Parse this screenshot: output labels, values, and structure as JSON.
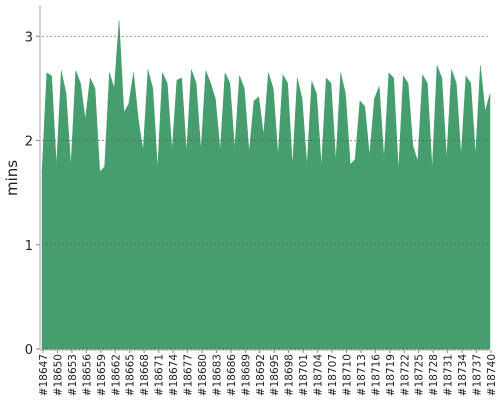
{
  "chart_data": {
    "type": "area",
    "y_label": "mins",
    "color": "#469e6e",
    "grid": true,
    "ylim": [
      0,
      3.3
    ],
    "yticks": [
      0,
      1,
      2,
      3
    ],
    "categories": [
      "#18647",
      null,
      null,
      "#18650",
      null,
      null,
      "#18653",
      null,
      null,
      "#18656",
      null,
      null,
      "#18659",
      null,
      null,
      "#18662",
      null,
      null,
      "#18665",
      null,
      null,
      "#18668",
      null,
      null,
      "#18671",
      null,
      null,
      "#18674",
      null,
      null,
      "#18677",
      null,
      null,
      "#18680",
      null,
      null,
      "#18683",
      null,
      null,
      "#18686",
      null,
      null,
      "#18689",
      null,
      null,
      "#18692",
      null,
      null,
      "#18695",
      null,
      null,
      "#18698",
      null,
      null,
      "#18701",
      null,
      null,
      "#18704",
      null,
      null,
      "#18707",
      null,
      null,
      "#18710",
      null,
      null,
      "#18713",
      null,
      null,
      "#18716",
      null,
      null,
      "#18719",
      null,
      null,
      "#18722",
      null,
      null,
      "#18725",
      null,
      null,
      "#18728",
      null,
      null,
      "#18731",
      null,
      null,
      "#18734",
      null,
      null,
      "#18737",
      null,
      null,
      "#18740"
    ],
    "values": [
      1.7,
      2.65,
      2.62,
      1.75,
      2.67,
      2.45,
      1.75,
      2.67,
      2.55,
      2.2,
      2.6,
      2.5,
      1.7,
      1.75,
      2.65,
      2.5,
      3.15,
      2.27,
      2.35,
      2.65,
      2.2,
      1.9,
      2.68,
      2.5,
      1.72,
      2.65,
      2.55,
      1.9,
      2.58,
      2.6,
      1.88,
      2.68,
      2.55,
      1.9,
      2.67,
      2.55,
      2.4,
      1.9,
      2.65,
      2.55,
      1.92,
      2.62,
      2.5,
      1.88,
      2.38,
      2.42,
      2.05,
      2.65,
      2.5,
      1.85,
      2.63,
      2.55,
      1.75,
      2.6,
      2.4,
      1.75,
      2.57,
      2.45,
      1.75,
      2.6,
      2.55,
      1.8,
      2.65,
      2.45,
      1.77,
      1.82,
      2.38,
      2.33,
      1.85,
      2.4,
      2.52,
      1.82,
      2.65,
      2.6,
      1.7,
      2.62,
      2.55,
      1.95,
      1.8,
      2.63,
      2.55,
      1.72,
      2.72,
      2.6,
      1.82,
      2.68,
      2.55,
      1.85,
      2.62,
      2.55,
      1.85,
      2.72,
      2.28,
      2.45
    ]
  }
}
